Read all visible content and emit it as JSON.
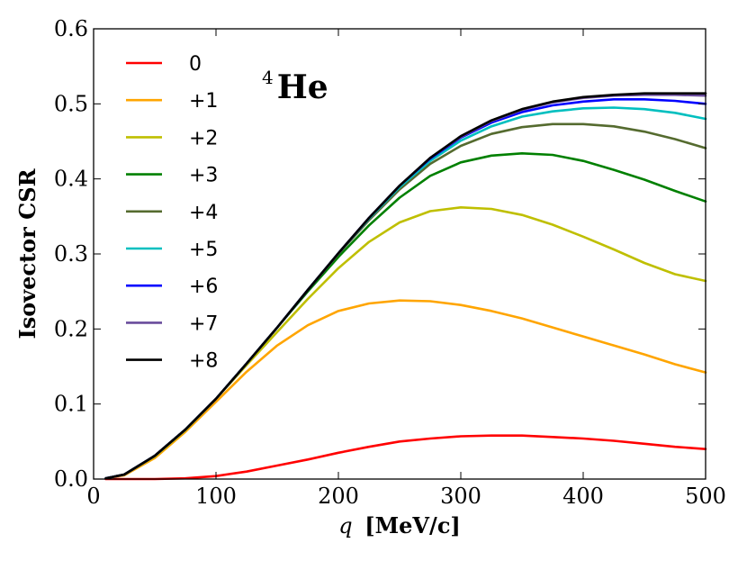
{
  "chart_data": {
    "type": "line",
    "title": "",
    "xlabel_var": "q",
    "xlabel_unit": "[MeV/c]",
    "ylabel": "Isovector CSR",
    "xlim": [
      0,
      500
    ],
    "ylim": [
      0.0,
      0.6
    ],
    "xticks": [
      0,
      100,
      200,
      300,
      400,
      500
    ],
    "yticks": [
      0.0,
      0.1,
      0.2,
      0.3,
      0.4,
      0.5,
      0.6
    ],
    "xtick_labels": [
      "0",
      "100",
      "200",
      "300",
      "400",
      "500"
    ],
    "ytick_labels": [
      "0.0",
      "0.1",
      "0.2",
      "0.3",
      "0.4",
      "0.5",
      "0.6"
    ],
    "grid": false,
    "legend_position": "top-left",
    "annotation": {
      "superscript": "4",
      "text": "He"
    },
    "x": [
      10,
      25,
      50,
      75,
      100,
      125,
      150,
      175,
      200,
      225,
      250,
      275,
      300,
      325,
      350,
      375,
      400,
      425,
      450,
      475,
      500
    ],
    "series": [
      {
        "name": "0",
        "color": "#ff0000",
        "values": [
          0.0,
          0.0,
          0.0,
          0.001,
          0.004,
          0.01,
          0.018,
          0.026,
          0.035,
          0.043,
          0.05,
          0.054,
          0.057,
          0.058,
          0.058,
          0.056,
          0.054,
          0.051,
          0.047,
          0.043,
          0.04
        ]
      },
      {
        "name": "+1",
        "color": "#ffa500",
        "values": [
          0.001,
          0.005,
          0.028,
          0.063,
          0.103,
          0.143,
          0.178,
          0.205,
          0.224,
          0.234,
          0.238,
          0.237,
          0.232,
          0.224,
          0.214,
          0.202,
          0.19,
          0.178,
          0.166,
          0.153,
          0.142
        ]
      },
      {
        "name": "+2",
        "color": "#bfbf00",
        "values": [
          0.001,
          0.006,
          0.03,
          0.065,
          0.107,
          0.152,
          0.196,
          0.24,
          0.281,
          0.316,
          0.342,
          0.357,
          0.362,
          0.36,
          0.352,
          0.339,
          0.323,
          0.306,
          0.288,
          0.273,
          0.264
        ]
      },
      {
        "name": "+3",
        "color": "#008000",
        "values": [
          0.001,
          0.006,
          0.031,
          0.066,
          0.107,
          0.154,
          0.202,
          0.25,
          0.296,
          0.338,
          0.375,
          0.404,
          0.422,
          0.431,
          0.434,
          0.432,
          0.424,
          0.412,
          0.399,
          0.384,
          0.37
        ]
      },
      {
        "name": "+4",
        "color": "#556b2f",
        "values": [
          0.001,
          0.006,
          0.031,
          0.066,
          0.107,
          0.154,
          0.202,
          0.252,
          0.3,
          0.345,
          0.386,
          0.42,
          0.444,
          0.46,
          0.469,
          0.473,
          0.473,
          0.47,
          0.463,
          0.453,
          0.441
        ]
      },
      {
        "name": "+5",
        "color": "#00bfbf",
        "values": [
          0.001,
          0.006,
          0.031,
          0.066,
          0.107,
          0.154,
          0.202,
          0.252,
          0.301,
          0.347,
          0.389,
          0.424,
          0.451,
          0.47,
          0.483,
          0.49,
          0.494,
          0.495,
          0.493,
          0.488,
          0.48
        ]
      },
      {
        "name": "+6",
        "color": "#0000ff",
        "values": [
          0.001,
          0.006,
          0.031,
          0.066,
          0.107,
          0.154,
          0.202,
          0.252,
          0.301,
          0.348,
          0.391,
          0.427,
          0.455,
          0.475,
          0.489,
          0.498,
          0.503,
          0.506,
          0.506,
          0.504,
          0.5
        ]
      },
      {
        "name": "+7",
        "color": "#6a4c9c",
        "values": [
          0.001,
          0.006,
          0.031,
          0.066,
          0.107,
          0.154,
          0.202,
          0.252,
          0.301,
          0.348,
          0.391,
          0.428,
          0.456,
          0.477,
          0.492,
          0.502,
          0.508,
          0.511,
          0.512,
          0.512,
          0.511
        ]
      },
      {
        "name": "+8",
        "color": "#000000",
        "values": [
          0.001,
          0.006,
          0.031,
          0.066,
          0.107,
          0.154,
          0.202,
          0.252,
          0.301,
          0.348,
          0.391,
          0.428,
          0.457,
          0.478,
          0.493,
          0.503,
          0.509,
          0.512,
          0.514,
          0.514,
          0.514
        ]
      }
    ]
  }
}
